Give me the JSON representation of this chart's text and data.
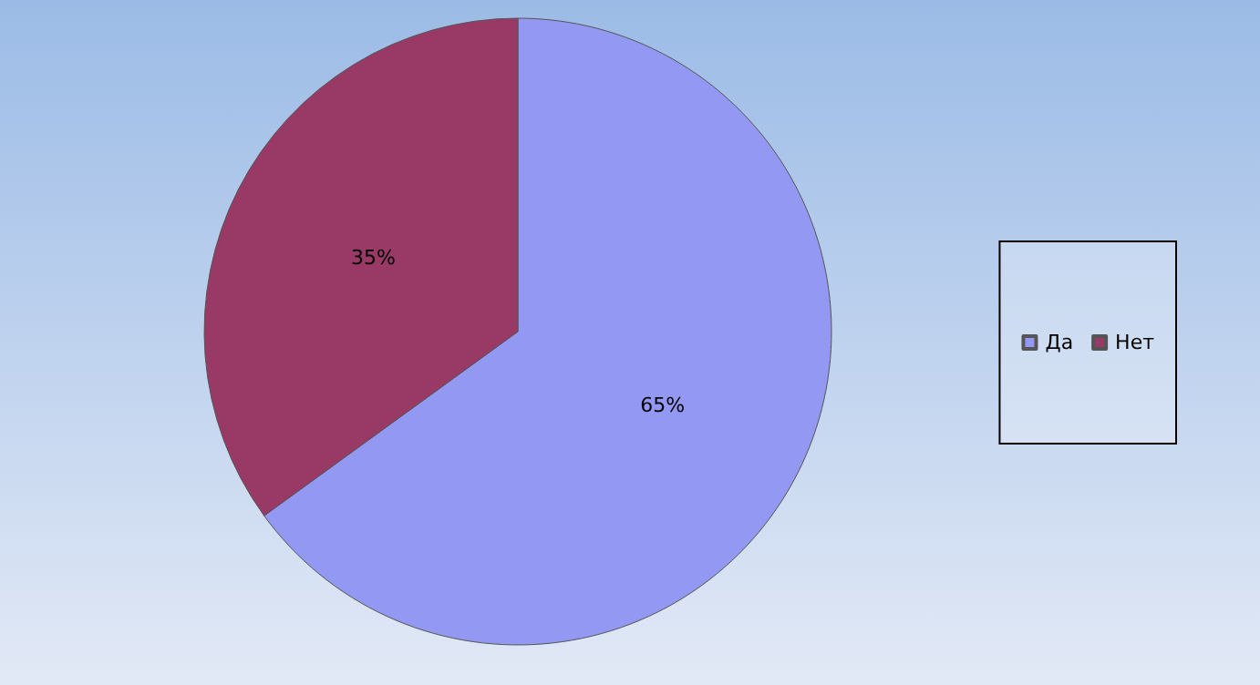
{
  "chart_data": {
    "type": "pie",
    "categories": [
      "Да",
      "Нет"
    ],
    "values": [
      65,
      35
    ],
    "colors": [
      "#9399f2",
      "#993a66"
    ],
    "value_labels": [
      "65%",
      "35%"
    ],
    "legend": "right"
  }
}
